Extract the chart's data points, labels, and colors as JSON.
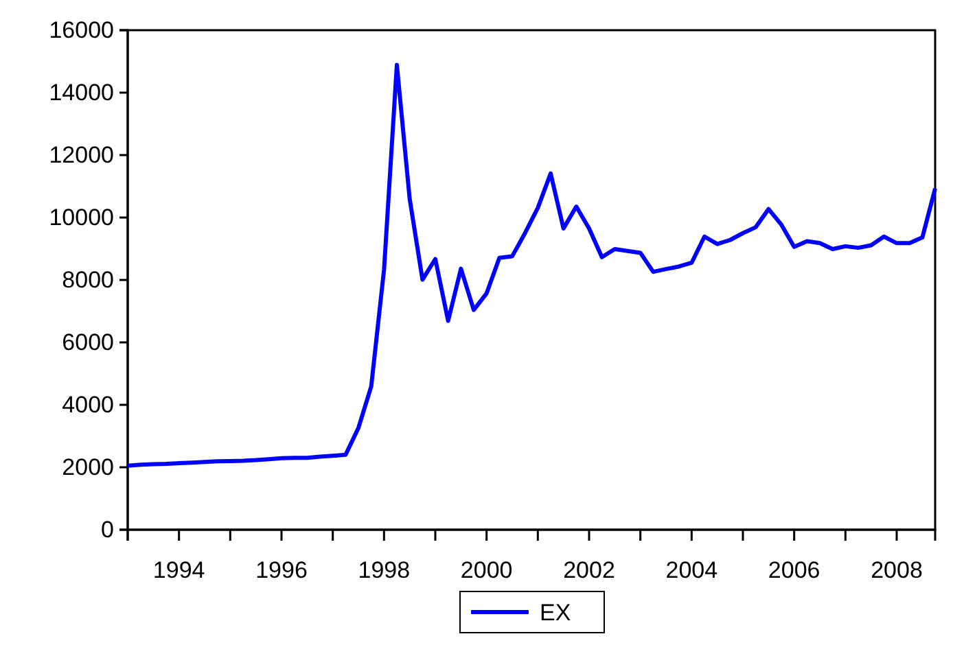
{
  "chart_data": {
    "type": "line",
    "x": [
      1993,
      1993.25,
      1993.5,
      1993.75,
      1994,
      1994.25,
      1994.5,
      1994.75,
      1995,
      1995.25,
      1995.5,
      1995.75,
      1996,
      1996.25,
      1996.5,
      1996.75,
      1997,
      1997.25,
      1997.5,
      1997.75,
      1998,
      1998.25,
      1998.5,
      1998.75,
      1999,
      1999.25,
      1999.5,
      1999.75,
      2000,
      2000.25,
      2000.5,
      2000.75,
      2001,
      2001.25,
      2001.5,
      2001.75,
      2002,
      2002.25,
      2002.5,
      2002.75,
      2003,
      2003.25,
      2003.5,
      2003.75,
      2004,
      2004.25,
      2004.5,
      2004.75,
      2005,
      2005.25,
      2005.5,
      2005.75,
      2006,
      2006.25,
      2006.5,
      2006.75,
      2007,
      2007.25,
      2007.5,
      2007.75,
      2008,
      2008.25,
      2008.5,
      2008.75
    ],
    "series": [
      {
        "name": "EX",
        "color": "#0000ff",
        "values": [
          2050,
          2080,
          2100,
          2110,
          2130,
          2150,
          2170,
          2190,
          2200,
          2210,
          2230,
          2260,
          2290,
          2300,
          2300,
          2340,
          2370,
          2400,
          3260,
          4590,
          8330,
          14890,
          10600,
          8010,
          8670,
          6690,
          8360,
          7040,
          7570,
          8710,
          8760,
          9500,
          10310,
          11410,
          9650,
          10350,
          9650,
          8730,
          8990,
          8930,
          8870,
          8260,
          8350,
          8430,
          8550,
          9390,
          9150,
          9280,
          9500,
          9690,
          10270,
          9770,
          9060,
          9240,
          9180,
          8990,
          9080,
          9030,
          9110,
          9390,
          9180,
          9180,
          9360,
          10930
        ]
      }
    ],
    "xlim": [
      1993,
      2008.75
    ],
    "xticks": [
      {
        "value": 1993,
        "label": null
      },
      {
        "value": 1994,
        "label": "1994"
      },
      {
        "value": 1995,
        "label": null
      },
      {
        "value": 1996,
        "label": "1996"
      },
      {
        "value": 1997,
        "label": null
      },
      {
        "value": 1998,
        "label": "1998"
      },
      {
        "value": 1999,
        "label": null
      },
      {
        "value": 2000,
        "label": "2000"
      },
      {
        "value": 2001,
        "label": null
      },
      {
        "value": 2002,
        "label": "2002"
      },
      {
        "value": 2003,
        "label": null
      },
      {
        "value": 2004,
        "label": "2004"
      },
      {
        "value": 2005,
        "label": null
      },
      {
        "value": 2006,
        "label": "2006"
      },
      {
        "value": 2007,
        "label": null
      },
      {
        "value": 2008,
        "label": "2008"
      }
    ],
    "ylim": [
      0,
      16000
    ],
    "yticks": [
      0,
      2000,
      4000,
      6000,
      8000,
      10000,
      12000,
      14000,
      16000
    ],
    "grid": false,
    "legend": "bottom",
    "marker": "none",
    "line_style": "solid"
  }
}
